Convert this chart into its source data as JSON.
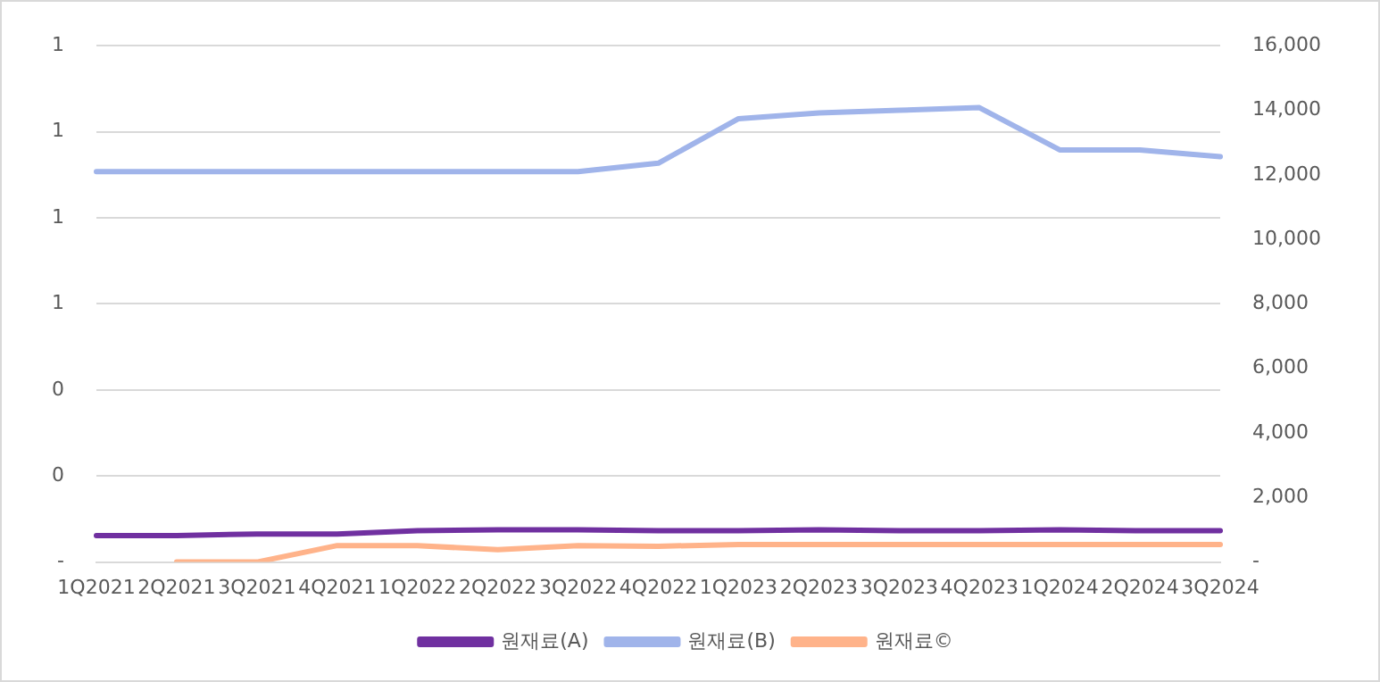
{
  "chart_data": {
    "type": "line",
    "categories": [
      "1Q2021",
      "2Q2021",
      "3Q2021",
      "4Q2021",
      "1Q2022",
      "2Q2022",
      "3Q2022",
      "4Q2022",
      "1Q2023",
      "2Q2023",
      "3Q2023",
      "4Q2023",
      "1Q2024",
      "2Q2024",
      "3Q2024"
    ],
    "series": [
      {
        "name": "원재료(A)",
        "color": "#7030a0",
        "axis": "y2",
        "values": [
          820,
          820,
          870,
          870,
          970,
          1000,
          1000,
          970,
          970,
          1000,
          970,
          970,
          1000,
          970,
          970
        ]
      },
      {
        "name": "원재료(B)",
        "color": "#a0b4ea",
        "axis": "y2",
        "values": [
          12100,
          12100,
          12100,
          12100,
          12100,
          12100,
          12100,
          12360,
          13740,
          13920,
          14000,
          14080,
          12770,
          12770,
          12560
        ]
      },
      {
        "name": "원재료©",
        "color": "#ffb38a",
        "axis": "y2",
        "values": [
          null,
          0,
          0,
          510,
          510,
          380,
          510,
          490,
          540,
          540,
          540,
          540,
          540,
          540,
          540
        ]
      }
    ],
    "ylim": [
      0,
      1.2
    ],
    "yticks": [
      {
        "value": 0,
        "label": "-"
      },
      {
        "value": 0.2,
        "label": "0"
      },
      {
        "value": 0.4,
        "label": "0"
      },
      {
        "value": 0.6,
        "label": "1"
      },
      {
        "value": 0.8,
        "label": "1"
      },
      {
        "value": 1,
        "label": "1"
      },
      {
        "value": 1.2,
        "label": "1"
      }
    ],
    "y2lim": [
      0,
      16000
    ],
    "y2ticks": [
      {
        "value": 0,
        "label": "-"
      },
      {
        "value": 2000,
        "label": "2,000"
      },
      {
        "value": 4000,
        "label": "4,000"
      },
      {
        "value": 6000,
        "label": "6,000"
      },
      {
        "value": 8000,
        "label": "8,000"
      },
      {
        "value": 10000,
        "label": "10,000"
      },
      {
        "value": 12000,
        "label": "12,000"
      },
      {
        "value": 14000,
        "label": "14,000"
      },
      {
        "value": 16000,
        "label": "16,000"
      }
    ],
    "grid": "y",
    "legend": "bottom",
    "marker": "none",
    "line_style": "solid"
  }
}
